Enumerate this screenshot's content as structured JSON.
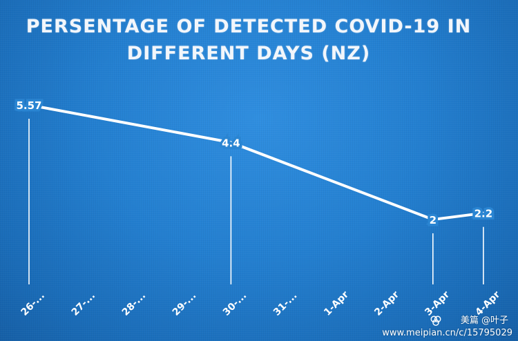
{
  "chart_data": {
    "type": "line",
    "title_line1": "PERSENTAGE OF DETECTED COVID-19 IN",
    "title_line2": "DIFFERENT DAYS (NZ)",
    "categories": [
      "26-...",
      "27-...",
      "28-...",
      "29-...",
      "30-...",
      "31-...",
      "1-Apr",
      "2-Apr",
      "3-Apr",
      "4-Apr"
    ],
    "points": [
      {
        "category_index": 0,
        "value": 5.57,
        "label": "5.57"
      },
      {
        "category_index": 4,
        "value": 4.4,
        "label": "4.4"
      },
      {
        "category_index": 8,
        "value": 2,
        "label": "2"
      },
      {
        "category_index": 9,
        "value": 2.2,
        "label": "2.2"
      }
    ],
    "ylim": [
      0,
      6.2
    ],
    "line_color": "#ffffff",
    "background_color": "#2180d0"
  },
  "watermark": {
    "line1": "美篇 @叶子",
    "line2": "www.meipian.cn/c/15795029"
  }
}
